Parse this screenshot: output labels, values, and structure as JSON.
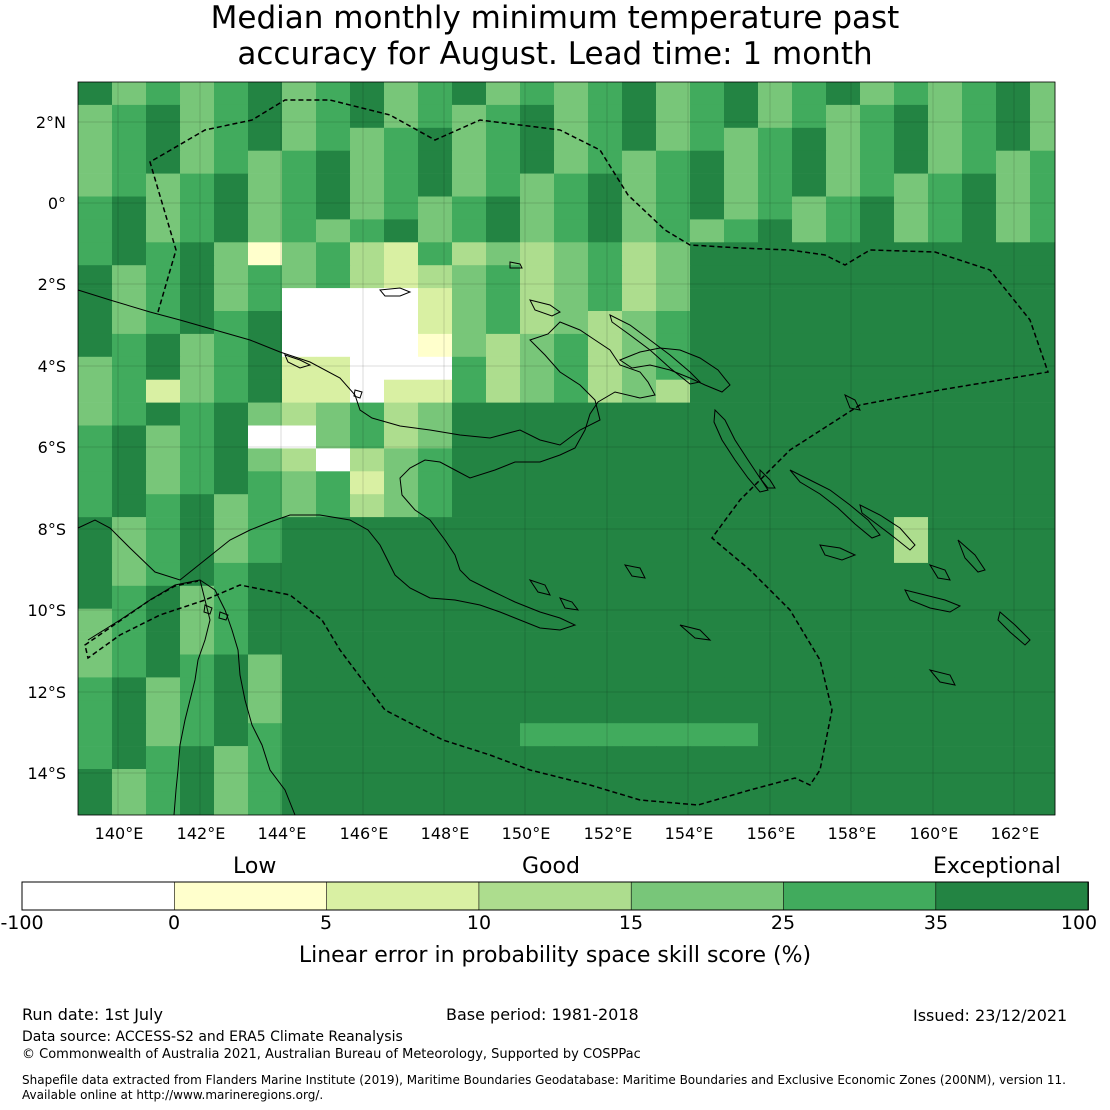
{
  "title_line1": "Median monthly minimum temperature past",
  "title_line2": "accuracy for August. Lead time: 1 month",
  "map": {
    "lat_labels": [
      "2°N",
      "0°",
      "2°S",
      "4°S",
      "6°S",
      "8°S",
      "10°S",
      "12°S",
      "14°S"
    ],
    "lon_labels": [
      "140°E",
      "142°E",
      "144°E",
      "146°E",
      "148°E",
      "150°E",
      "152°E",
      "154°E",
      "156°E",
      "158°E",
      "160°E",
      "162°E"
    ],
    "lon_range": [
      139,
      163
    ],
    "lat_range": [
      -15,
      3
    ]
  },
  "legend": {
    "categories": [
      "Low",
      "Good",
      "Exceptional"
    ],
    "ticks": [
      "-100",
      "0",
      "5",
      "10",
      "15",
      "25",
      "35",
      "100"
    ],
    "colors": [
      "#ffffff",
      "#ffffcc",
      "#d9f0a3",
      "#addd8e",
      "#78c679",
      "#41ab5d",
      "#238443"
    ],
    "label": "Linear error in probability space skill score (%)"
  },
  "footer": {
    "run_date": "Run date: 1st July",
    "base_period": "Base period: 1981-2018",
    "issued": "Issued: 23/12/2021",
    "data_source": "Data source: ACCESS-S2 and ERA5 Climate Reanalysis",
    "copyright": "© Commonwealth of Australia 2021, Australian Bureau of Meteorology, Supported by COSPPac",
    "shapefile_1": "Shapefile data extracted from Flanders Marine Institute (2019), Maritime Boundaries Geodatabase: Maritime Boundaries and Exclusive Economic Zones (200NM), version 11.",
    "shapefile_2": "Available online at http://www.marineregions.org/."
  }
}
